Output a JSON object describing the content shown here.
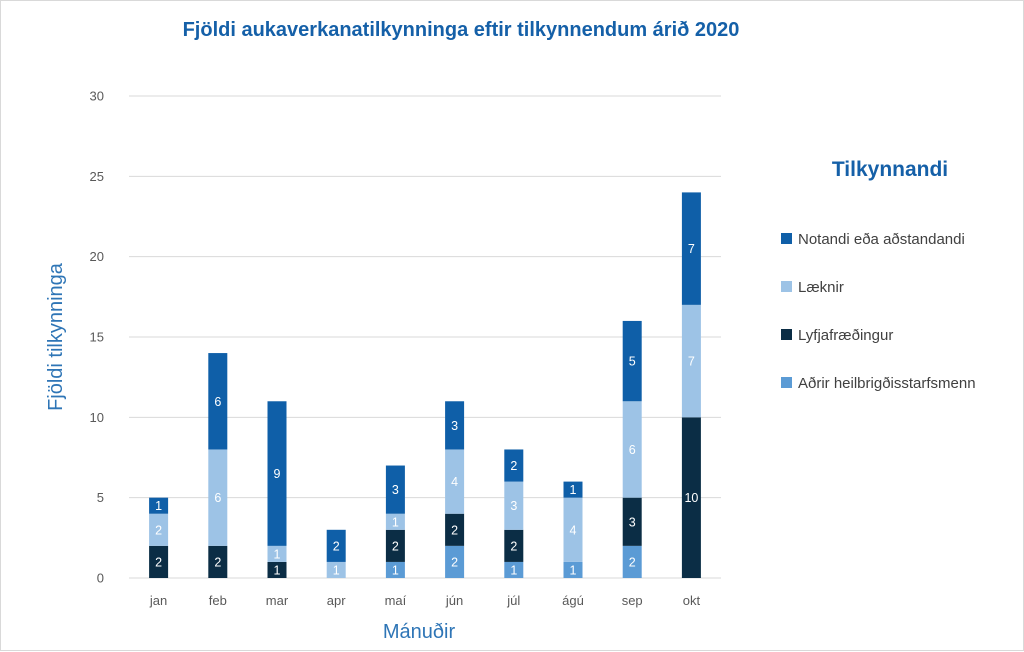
{
  "chart_data": {
    "type": "bar",
    "stacked": true,
    "title": "Fjöldi aukaverkanatilkynninga eftir tilkynnendum árið 2020",
    "xlabel": "Mánuðir",
    "ylabel": "Fjöldi tilkynninga",
    "ylim": [
      0,
      30
    ],
    "yticks": [
      0,
      5,
      10,
      15,
      20,
      25,
      30
    ],
    "grid": true,
    "legend_title": "Tilkynnandi",
    "legend_position": "right",
    "categories": [
      "jan",
      "feb",
      "mar",
      "apr",
      "maí",
      "jún",
      "júl",
      "ágú",
      "sep",
      "okt"
    ],
    "series": [
      {
        "name": "Aðrir heilbrigðisstarfsmenn",
        "color": "#5b9bd5",
        "label_color": "#ffffff",
        "values": [
          0,
          0,
          0,
          0,
          1,
          2,
          1,
          1,
          2,
          0
        ]
      },
      {
        "name": "Lyfjafræðingur",
        "color": "#0b2d45",
        "label_color": "#ffffff",
        "values": [
          2,
          2,
          1,
          0,
          2,
          2,
          2,
          0,
          3,
          10
        ]
      },
      {
        "name": "Læknir",
        "color": "#9dc3e6",
        "label_color": "#ffffff",
        "values": [
          2,
          6,
          1,
          1,
          1,
          4,
          3,
          4,
          6,
          7
        ]
      },
      {
        "name": "Notandi eða aðstandandi",
        "color": "#0f5fa8",
        "label_color": "#ffffff",
        "values": [
          1,
          6,
          9,
          2,
          3,
          3,
          2,
          1,
          5,
          7
        ]
      }
    ],
    "legend_order": [
      3,
      2,
      1,
      0
    ],
    "colors": {
      "title": "#1560a8",
      "axis_title": "#2e75b6",
      "tick": "#595959",
      "grid": "#d9d9d9"
    }
  }
}
